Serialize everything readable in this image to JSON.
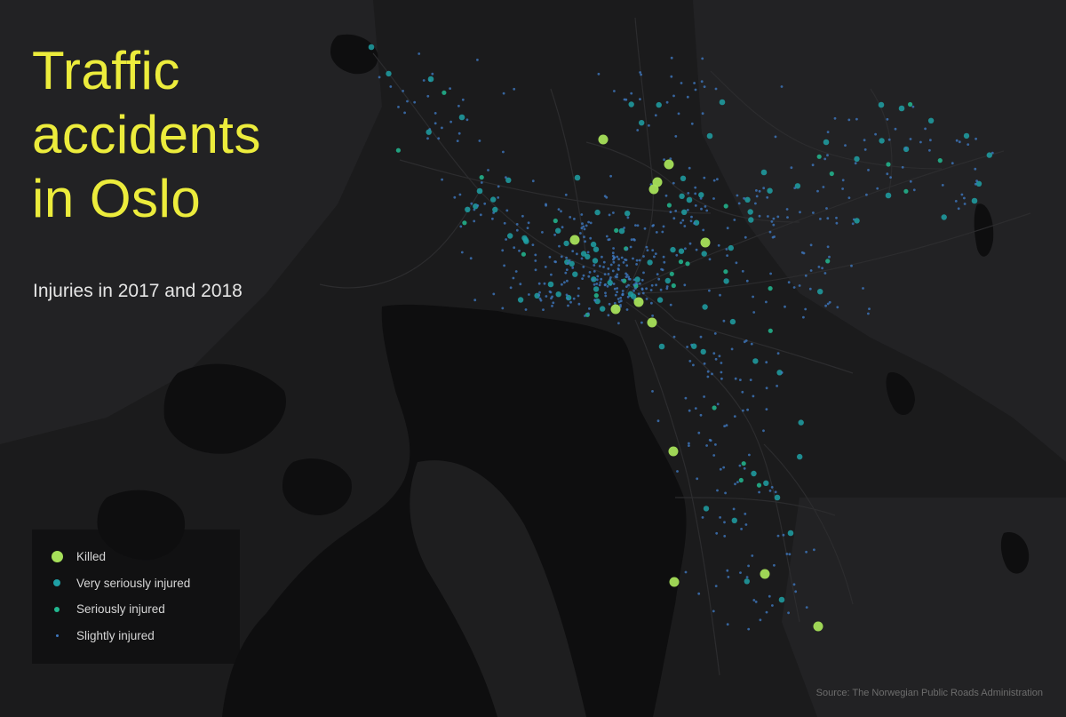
{
  "title_lines": [
    "Traffic",
    "accidents",
    "in Oslo"
  ],
  "subtitle": "Injuries in 2017 and 2018",
  "legend": [
    {
      "key": "killed",
      "label": "Killed",
      "color": "#a6e05a"
    },
    {
      "key": "very_serious",
      "label": "Very seriously injured",
      "color": "#1fa0a5"
    },
    {
      "key": "serious",
      "label": "Seriously injured",
      "color": "#22b890"
    },
    {
      "key": "slight",
      "label": "Slightly injured",
      "color": "#3f78bf"
    }
  ],
  "source": "Source: The Norwegian Public Roads Administration",
  "colors": {
    "background": "#1a1a1b",
    "land": "#202021",
    "water": "#0f0f10",
    "roads": "#2a2a2c",
    "title": "#ecec3c",
    "subtitle": "#e6e6e6"
  }
}
